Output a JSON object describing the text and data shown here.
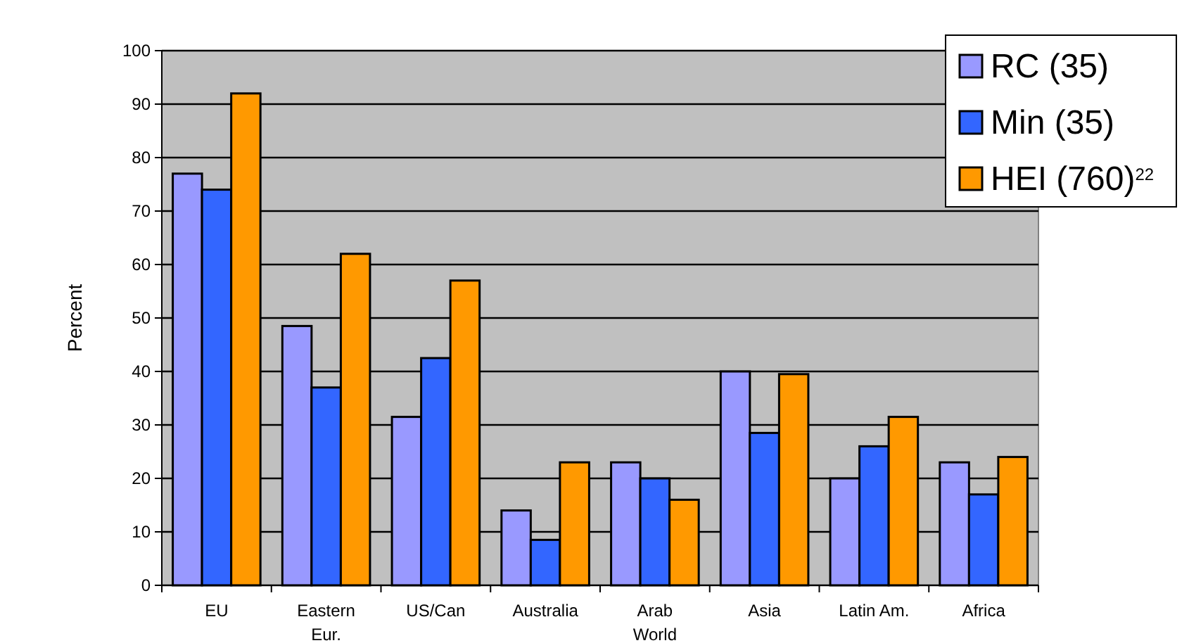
{
  "chart_data": {
    "type": "bar",
    "ylabel": "Percent",
    "categories": [
      "EU",
      "Eastern\nEur.",
      "US/Can",
      "Australia",
      "Arab\nWorld",
      "Asia",
      "Latin Am.",
      "Africa"
    ],
    "series": [
      {
        "name": "RC (35)",
        "color": "#9999ff",
        "values": [
          77,
          48.5,
          31.5,
          14,
          23,
          40,
          20,
          23
        ]
      },
      {
        "name": "Min (35)",
        "color": "#3366ff",
        "values": [
          74,
          37,
          42.5,
          8.5,
          20,
          28.5,
          26,
          17
        ]
      },
      {
        "name": "HEI (760)$^{22}$",
        "color": "#ff9900",
        "values": [
          92,
          62,
          57,
          23,
          16,
          39.5,
          31.5,
          24
        ]
      }
    ],
    "ylim": [
      0,
      100
    ],
    "yticks": [
      0,
      10,
      20,
      30,
      40,
      50,
      60,
      70,
      80,
      90,
      100
    ],
    "grid": "y",
    "legend": "top right"
  }
}
